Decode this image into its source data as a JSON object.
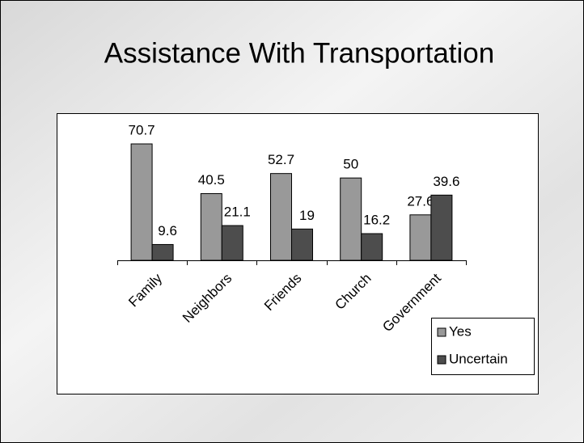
{
  "chart_data": {
    "type": "bar",
    "title": "Assistance With Transportation",
    "categories": [
      "Family",
      "Neighbors",
      "Friends",
      "Church",
      "Government"
    ],
    "series": [
      {
        "name": "Yes",
        "color": "#999999",
        "values": [
          70.7,
          40.5,
          52.7,
          50,
          27.6
        ]
      },
      {
        "name": "Uncertain",
        "color": "#4d4d4d",
        "values": [
          9.6,
          21.1,
          19,
          16.2,
          39.6
        ]
      }
    ],
    "legend": "lower right"
  }
}
